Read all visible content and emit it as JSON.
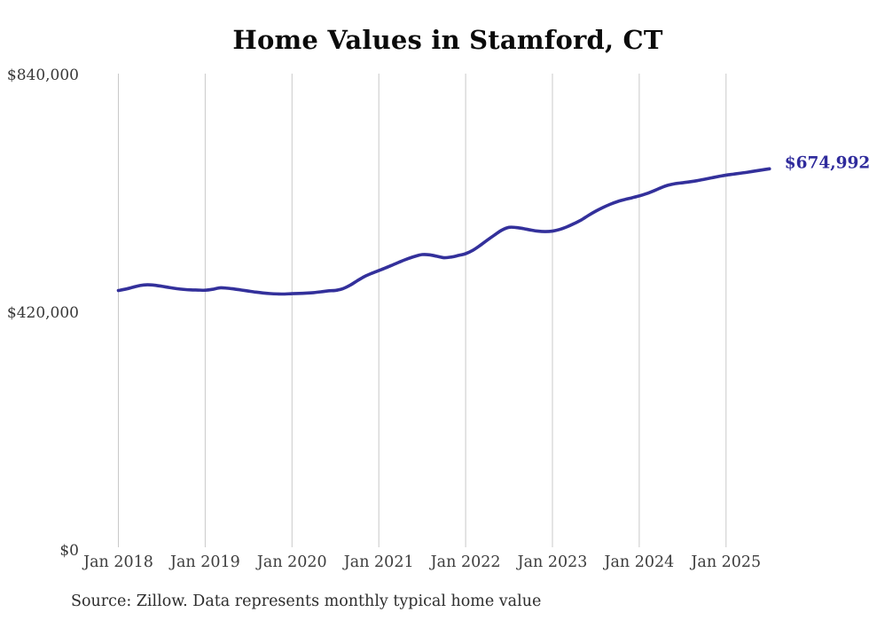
{
  "title": "Home Values in Stamford, CT",
  "end_label": "$674,992",
  "source": "Source: Zillow. Data represents monthly typical home value",
  "colors": {
    "line": "#33309b",
    "end_label_text": "#2f2b9c",
    "grid": "#c9c9c9",
    "axis_text": "#3d3d3d",
    "title_text": "#0b0b0b"
  },
  "chart_data": {
    "type": "line",
    "title": "Home Values in Stamford, CT",
    "xlabel": "",
    "ylabel": "",
    "ylim": [
      0,
      840000
    ],
    "grid": "vertical-only",
    "legend": "none",
    "y_ticks": [
      {
        "label": "$840,000",
        "value": 840000
      },
      {
        "label": "$420,000",
        "value": 420000
      },
      {
        "label": "$0",
        "value": 0
      }
    ],
    "x_tick_labels": [
      "Jan 2018",
      "Jan 2019",
      "Jan 2020",
      "Jan 2021",
      "Jan 2022",
      "Jan 2023",
      "Jan 2024",
      "Jan 2025"
    ],
    "latest_point": {
      "month": "2025-07",
      "value": 674992,
      "label": "$674,992"
    },
    "series": [
      {
        "name": "Monthly typical home value",
        "months": [
          "2018-01",
          "2018-02",
          "2018-03",
          "2018-04",
          "2018-05",
          "2018-06",
          "2018-07",
          "2018-08",
          "2018-09",
          "2018-10",
          "2018-11",
          "2018-12",
          "2019-01",
          "2019-02",
          "2019-03",
          "2019-04",
          "2019-05",
          "2019-06",
          "2019-07",
          "2019-08",
          "2019-09",
          "2019-10",
          "2019-11",
          "2019-12",
          "2020-01",
          "2020-02",
          "2020-03",
          "2020-04",
          "2020-05",
          "2020-06",
          "2020-07",
          "2020-08",
          "2020-09",
          "2020-10",
          "2020-11",
          "2020-12",
          "2021-01",
          "2021-02",
          "2021-03",
          "2021-04",
          "2021-05",
          "2021-06",
          "2021-07",
          "2021-08",
          "2021-09",
          "2021-10",
          "2021-11",
          "2021-12",
          "2022-01",
          "2022-02",
          "2022-03",
          "2022-04",
          "2022-05",
          "2022-06",
          "2022-07",
          "2022-08",
          "2022-09",
          "2022-10",
          "2022-11",
          "2022-12",
          "2023-01",
          "2023-02",
          "2023-03",
          "2023-04",
          "2023-05",
          "2023-06",
          "2023-07",
          "2023-08",
          "2023-09",
          "2023-10",
          "2023-11",
          "2023-12",
          "2024-01",
          "2024-02",
          "2024-03",
          "2024-04",
          "2024-05",
          "2024-06",
          "2024-07",
          "2024-08",
          "2024-09",
          "2024-10",
          "2024-11",
          "2024-12",
          "2025-01",
          "2025-02",
          "2025-03",
          "2025-04",
          "2025-05",
          "2025-06",
          "2025-07"
        ],
        "values": [
          459900,
          462400,
          465600,
          468800,
          470100,
          469300,
          467400,
          465200,
          463300,
          461900,
          461000,
          460700,
          460400,
          462000,
          464600,
          464100,
          462600,
          460800,
          458900,
          457100,
          455600,
          454500,
          453900,
          453700,
          454400,
          454700,
          455300,
          456200,
          457600,
          459300,
          460100,
          463000,
          469000,
          477000,
          484500,
          490200,
          495200,
          500200,
          505600,
          511000,
          516000,
          520300,
          523400,
          523000,
          520500,
          517900,
          519000,
          521800,
          525000,
          531000,
          539500,
          549000,
          558000,
          566500,
          571500,
          571200,
          569300,
          566800,
          564800,
          564100,
          564900,
          567800,
          572400,
          578200,
          584700,
          592800,
          600200,
          606700,
          612400,
          617100,
          620700,
          623800,
          627000,
          631000,
          636000,
          641500,
          646000,
          648800,
          650300,
          652000,
          654000,
          656500,
          659000,
          661500,
          663800,
          665500,
          667200,
          669000,
          671000,
          673000,
          674992
        ]
      }
    ]
  }
}
